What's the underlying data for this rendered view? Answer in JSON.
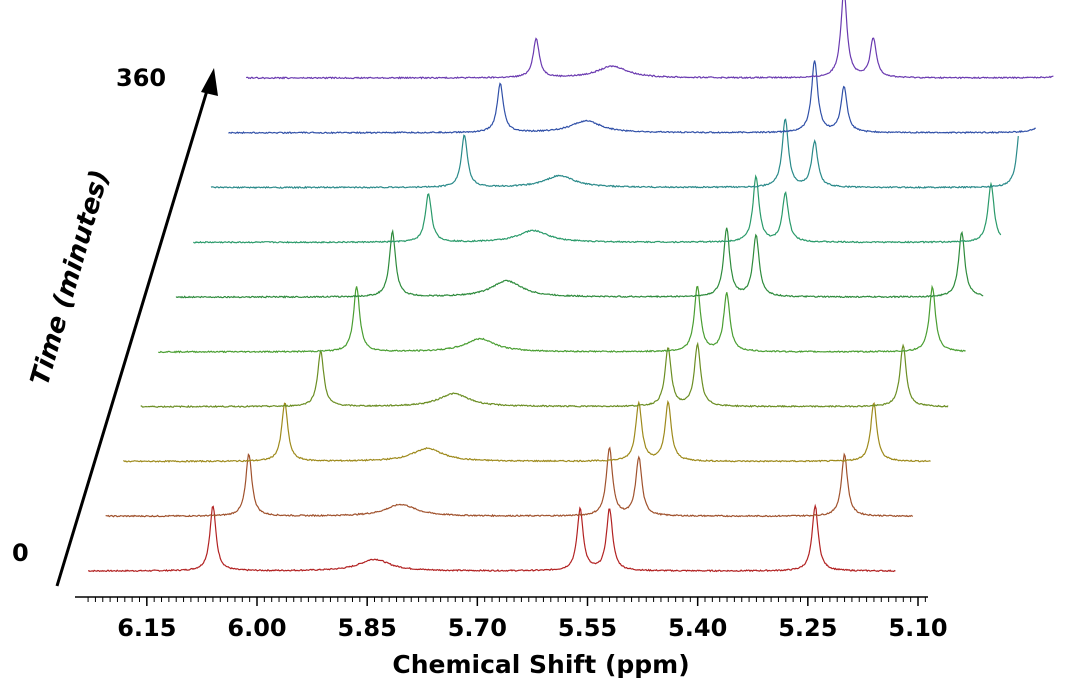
{
  "chart_data": {
    "type": "line",
    "subtype": "stacked-waterfall",
    "title": "",
    "xlabel": "Chemical Shift (ppm)",
    "ylabel": "Time (minutes)",
    "x_reversed": true,
    "xlim": [
      6.25,
      5.07
    ],
    "x_tick_labels": [
      "6.15",
      "6.00",
      "5.85",
      "5.70",
      "5.55",
      "5.40",
      "5.25",
      "5.10"
    ],
    "x_ticks": [
      6.15,
      6.0,
      5.85,
      5.7,
      5.55,
      5.4,
      5.25,
      5.1
    ],
    "time_labels": {
      "start": "0",
      "end": "360"
    },
    "time_minutes": [
      0,
      40,
      80,
      120,
      160,
      200,
      240,
      280,
      320,
      360
    ],
    "series": [
      {
        "time": 0,
        "color": "#b22222",
        "peaks": [
          {
            "ppm": 6.06,
            "height": 1.0,
            "width": 0.005
          },
          {
            "ppm": 5.84,
            "height": 0.18,
            "width": 0.025
          },
          {
            "ppm": 5.56,
            "height": 0.95,
            "width": 0.005
          },
          {
            "ppm": 5.52,
            "height": 0.95,
            "width": 0.005
          },
          {
            "ppm": 5.24,
            "height": 1.0,
            "width": 0.005
          }
        ]
      },
      {
        "time": 40,
        "color": "#a0522d",
        "peaks": [
          {
            "ppm": 6.06,
            "height": 0.95,
            "width": 0.005
          },
          {
            "ppm": 5.84,
            "height": 0.18,
            "width": 0.025
          },
          {
            "ppm": 5.56,
            "height": 1.05,
            "width": 0.005
          },
          {
            "ppm": 5.52,
            "height": 0.9,
            "width": 0.005
          },
          {
            "ppm": 5.24,
            "height": 0.95,
            "width": 0.005
          }
        ]
      },
      {
        "time": 80,
        "color": "#9e8a1c",
        "peaks": [
          {
            "ppm": 6.06,
            "height": 0.9,
            "width": 0.005
          },
          {
            "ppm": 5.84,
            "height": 0.2,
            "width": 0.025
          },
          {
            "ppm": 5.56,
            "height": 0.9,
            "width": 0.005
          },
          {
            "ppm": 5.52,
            "height": 0.9,
            "width": 0.005
          },
          {
            "ppm": 5.24,
            "height": 0.9,
            "width": 0.005
          }
        ]
      },
      {
        "time": 120,
        "color": "#6b8e23",
        "peaks": [
          {
            "ppm": 6.06,
            "height": 0.85,
            "width": 0.005
          },
          {
            "ppm": 5.84,
            "height": 0.2,
            "width": 0.025
          },
          {
            "ppm": 5.56,
            "height": 0.9,
            "width": 0.005
          },
          {
            "ppm": 5.52,
            "height": 0.95,
            "width": 0.005
          },
          {
            "ppm": 5.24,
            "height": 0.95,
            "width": 0.005
          }
        ]
      },
      {
        "time": 160,
        "color": "#4a9e32",
        "peaks": [
          {
            "ppm": 6.06,
            "height": 1.0,
            "width": 0.005
          },
          {
            "ppm": 5.84,
            "height": 0.2,
            "width": 0.025
          },
          {
            "ppm": 5.56,
            "height": 1.0,
            "width": 0.005
          },
          {
            "ppm": 5.52,
            "height": 0.9,
            "width": 0.005
          },
          {
            "ppm": 5.24,
            "height": 1.0,
            "width": 0.005
          }
        ]
      },
      {
        "time": 200,
        "color": "#2e8b3c",
        "peaks": [
          {
            "ppm": 6.06,
            "height": 1.0,
            "width": 0.005
          },
          {
            "ppm": 5.84,
            "height": 0.25,
            "width": 0.025
          },
          {
            "ppm": 5.56,
            "height": 1.05,
            "width": 0.005
          },
          {
            "ppm": 5.52,
            "height": 0.95,
            "width": 0.005
          },
          {
            "ppm": 5.24,
            "height": 1.0,
            "width": 0.005
          }
        ]
      },
      {
        "time": 240,
        "color": "#2a9a6a",
        "peaks": [
          {
            "ppm": 6.06,
            "height": 0.75,
            "width": 0.005
          },
          {
            "ppm": 5.84,
            "height": 0.18,
            "width": 0.025
          },
          {
            "ppm": 5.56,
            "height": 1.0,
            "width": 0.005
          },
          {
            "ppm": 5.52,
            "height": 0.75,
            "width": 0.005
          },
          {
            "ppm": 5.24,
            "height": 0.9,
            "width": 0.005
          }
        ]
      },
      {
        "time": 280,
        "color": "#2a8a8a",
        "peaks": [
          {
            "ppm": 6.06,
            "height": 0.8,
            "width": 0.005
          },
          {
            "ppm": 5.84,
            "height": 0.18,
            "width": 0.025
          },
          {
            "ppm": 5.56,
            "height": 1.05,
            "width": 0.005
          },
          {
            "ppm": 5.52,
            "height": 0.7,
            "width": 0.005
          },
          {
            "ppm": 5.24,
            "height": 1.05,
            "width": 0.005
          }
        ]
      },
      {
        "time": 320,
        "color": "#3050a8",
        "peaks": [
          {
            "ppm": 6.06,
            "height": 0.75,
            "width": 0.005
          },
          {
            "ppm": 5.84,
            "height": 0.18,
            "width": 0.025
          },
          {
            "ppm": 5.56,
            "height": 1.1,
            "width": 0.005
          },
          {
            "ppm": 5.52,
            "height": 0.7,
            "width": 0.005
          },
          {
            "ppm": 5.24,
            "height": 1.1,
            "width": 0.005
          }
        ]
      },
      {
        "time": 360,
        "color": "#6a3ab0",
        "peaks": [
          {
            "ppm": 6.06,
            "height": 0.6,
            "width": 0.005
          },
          {
            "ppm": 5.84,
            "height": 0.18,
            "width": 0.025
          },
          {
            "ppm": 5.56,
            "height": 1.35,
            "width": 0.005
          },
          {
            "ppm": 5.52,
            "height": 0.6,
            "width": 0.005
          },
          {
            "ppm": 5.24,
            "height": 1.1,
            "width": 0.005
          }
        ]
      }
    ],
    "grid": false,
    "legend": "none"
  }
}
